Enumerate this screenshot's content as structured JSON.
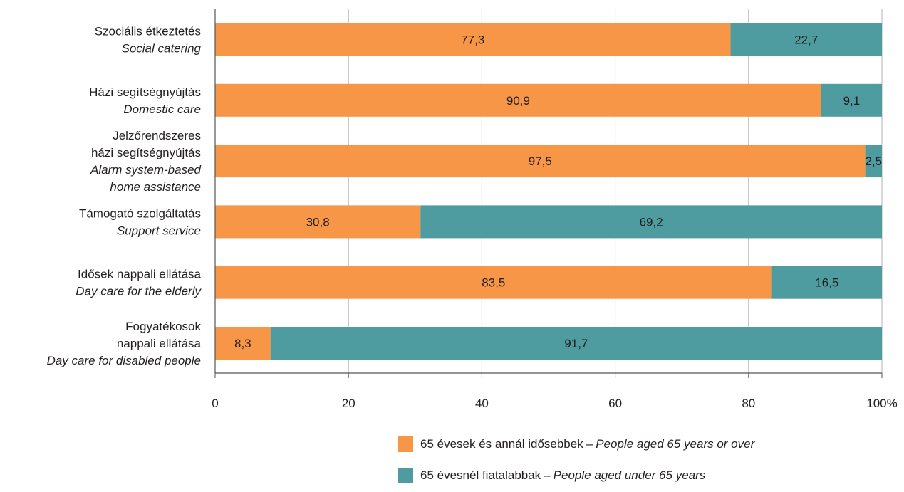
{
  "chart_data": {
    "type": "bar",
    "orientation": "horizontal",
    "stacked": true,
    "categories": [
      {
        "hu": [
          "Szociális étkeztetés"
        ],
        "en": [
          "Social catering"
        ]
      },
      {
        "hu": [
          "Házi segítségnyújtás"
        ],
        "en": [
          "Domestic care"
        ]
      },
      {
        "hu": [
          "Jelzőrendszeres",
          "házi segítségnyújtás"
        ],
        "en": [
          "Alarm system-based",
          "home assistance"
        ]
      },
      {
        "hu": [
          "Támogató szolgáltatás"
        ],
        "en": [
          "Support service"
        ]
      },
      {
        "hu": [
          "Idősek nappali ellátása"
        ],
        "en": [
          "Day care for the elderly"
        ]
      },
      {
        "hu": [
          "Fogyatékosok",
          "nappali ellátása"
        ],
        "en": [
          "Day care for disabled people"
        ]
      }
    ],
    "series": [
      {
        "name_hu": "65 évesek és annál idősebbek",
        "name_en": "People aged 65 years or over",
        "color": "#f79646",
        "values": [
          77.3,
          90.9,
          97.5,
          30.8,
          83.5,
          8.3
        ],
        "labels": [
          "77,3",
          "90,9",
          "97,5",
          "30,8",
          "83,5",
          "8,3"
        ]
      },
      {
        "name_hu": "65 évesnél fiatalabbak",
        "name_en": "People aged under 65 years",
        "color": "#4e9ba0",
        "values": [
          22.7,
          9.1,
          2.5,
          69.2,
          16.5,
          91.7
        ],
        "labels": [
          "22,7",
          "9,1",
          "2,5",
          "69,2",
          "16,5",
          "91,7"
        ]
      }
    ],
    "xlim": [
      0,
      100
    ],
    "xticks": [
      "0",
      "20",
      "40",
      "60",
      "80",
      "100%"
    ],
    "grid": true,
    "legend_position": "bottom-right",
    "legend_separator": "–"
  }
}
